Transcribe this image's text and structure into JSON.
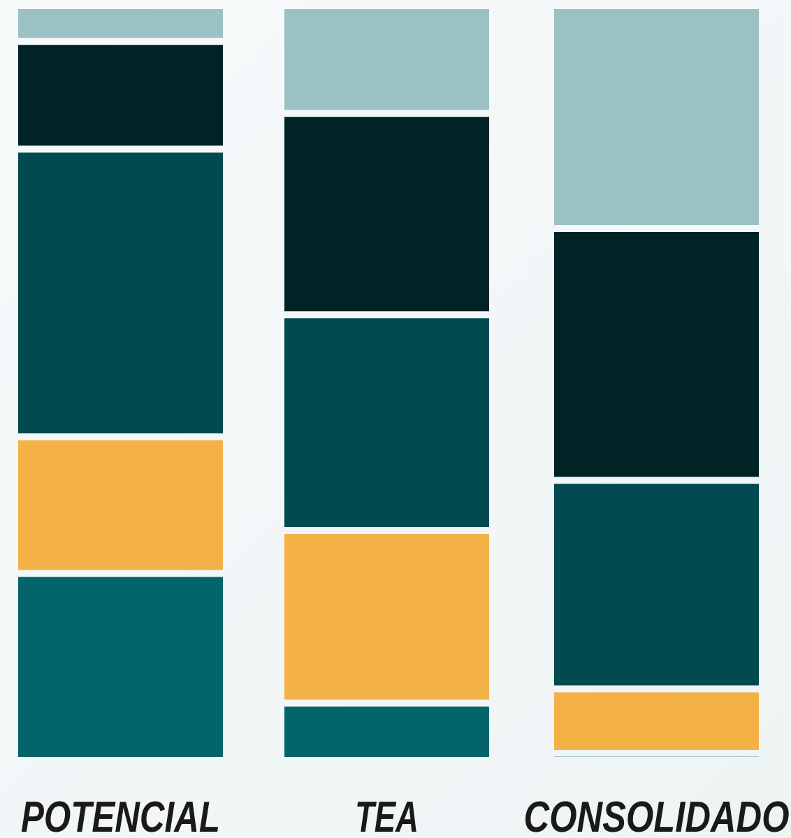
{
  "chart_data": {
    "type": "stacked_bar_100",
    "categories": [
      "POTENCIAL",
      "TEA",
      "CONSOLIDADO"
    ],
    "series": [
      {
        "color": "#03646a",
        "values": [
          25,
          7,
          0
        ]
      },
      {
        "color": "#f4b146",
        "values": [
          18,
          23,
          8
        ]
      },
      {
        "color": "#004a50",
        "values": [
          39,
          29,
          28
        ]
      },
      {
        "color": "#002326",
        "values": [
          14,
          27,
          34
        ]
      },
      {
        "color": "#9bc1c3",
        "values": [
          4,
          14,
          30
        ]
      }
    ]
  }
}
